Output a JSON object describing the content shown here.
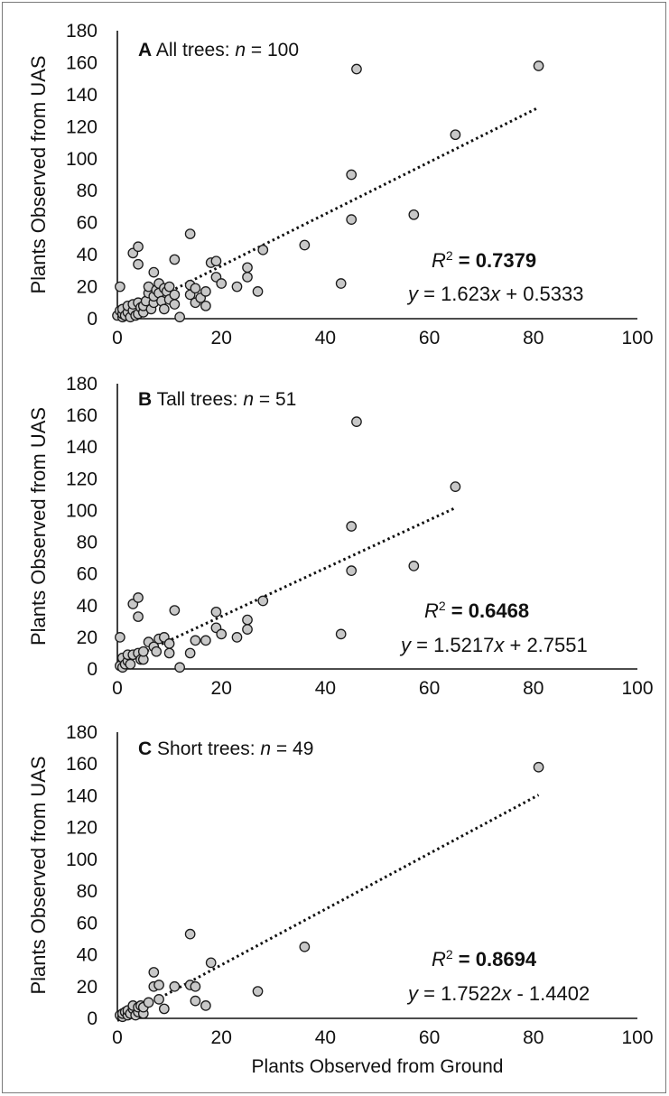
{
  "chart_data": [
    {
      "type": "scatter",
      "panel_letter": "A",
      "title": "All trees:",
      "n_label": "n",
      "n_value": "= 100",
      "ylabel": "Plants Observed from UAS",
      "xlabel": "",
      "xlim": [
        0,
        100
      ],
      "ylim": [
        0,
        180
      ],
      "x_ticks": [
        "0",
        "20",
        "40",
        "60",
        "80",
        "100"
      ],
      "y_ticks": [
        "0",
        "20",
        "40",
        "60",
        "80",
        "100",
        "120",
        "140",
        "160",
        "180"
      ],
      "r2_label": "R",
      "r2_sup": "2",
      "r2_value": "= 0.7379",
      "equation": "y = 1.623x + 0.5333",
      "trendline": {
        "slope": 1.623,
        "intercept": 0.5333,
        "x_range": [
          0,
          81
        ]
      },
      "points": [
        [
          0,
          2
        ],
        [
          0.5,
          20
        ],
        [
          0.5,
          5
        ],
        [
          1,
          1
        ],
        [
          1,
          3
        ],
        [
          1,
          6
        ],
        [
          1.5,
          2
        ],
        [
          2,
          4
        ],
        [
          2,
          8
        ],
        [
          2.5,
          1
        ],
        [
          3,
          5
        ],
        [
          3,
          9
        ],
        [
          3,
          41
        ],
        [
          3.5,
          2
        ],
        [
          4,
          3
        ],
        [
          4,
          10
        ],
        [
          4,
          34
        ],
        [
          4,
          45
        ],
        [
          4.5,
          7
        ],
        [
          5,
          4
        ],
        [
          5,
          8
        ],
        [
          5.5,
          11
        ],
        [
          6,
          16
        ],
        [
          6,
          20
        ],
        [
          6.5,
          6
        ],
        [
          7,
          10
        ],
        [
          7,
          14
        ],
        [
          7,
          29
        ],
        [
          7.5,
          18
        ],
        [
          8,
          16
        ],
        [
          8,
          22
        ],
        [
          8.5,
          11
        ],
        [
          9,
          6
        ],
        [
          9,
          19
        ],
        [
          9.5,
          17
        ],
        [
          10,
          12
        ],
        [
          10,
          20
        ],
        [
          11,
          37
        ],
        [
          11,
          15
        ],
        [
          11,
          9
        ],
        [
          12,
          1
        ],
        [
          14,
          53
        ],
        [
          14,
          21
        ],
        [
          14,
          15
        ],
        [
          15,
          10
        ],
        [
          15,
          19
        ],
        [
          16,
          13
        ],
        [
          17,
          8
        ],
        [
          17,
          17
        ],
        [
          18,
          35
        ],
        [
          19,
          36
        ],
        [
          19,
          26
        ],
        [
          20,
          22
        ],
        [
          23,
          20
        ],
        [
          25,
          32
        ],
        [
          25,
          26
        ],
        [
          27,
          17
        ],
        [
          28,
          43
        ],
        [
          36,
          46
        ],
        [
          43,
          22
        ],
        [
          45,
          90
        ],
        [
          45,
          62
        ],
        [
          46,
          156
        ],
        [
          57,
          65
        ],
        [
          65,
          115
        ],
        [
          81,
          158
        ]
      ]
    },
    {
      "type": "scatter",
      "panel_letter": "B",
      "title": "Tall trees:",
      "n_label": "n",
      "n_value": "= 51",
      "ylabel": "Plants Observed from UAS",
      "xlabel": "",
      "xlim": [
        0,
        100
      ],
      "ylim": [
        0,
        180
      ],
      "x_ticks": [
        "0",
        "20",
        "40",
        "60",
        "80",
        "100"
      ],
      "y_ticks": [
        "0",
        "20",
        "40",
        "60",
        "80",
        "100",
        "120",
        "140",
        "160",
        "180"
      ],
      "r2_label": "R",
      "r2_sup": "2",
      "r2_value": "= 0.6468",
      "equation": "y  = 1.5217x + 2.7551",
      "trendline": {
        "slope": 1.5217,
        "intercept": 2.7551,
        "x_range": [
          0,
          65
        ]
      },
      "points": [
        [
          0.5,
          20
        ],
        [
          0.5,
          2
        ],
        [
          1,
          1
        ],
        [
          1,
          7
        ],
        [
          1.5,
          3
        ],
        [
          2,
          5
        ],
        [
          2,
          9
        ],
        [
          2.5,
          3
        ],
        [
          3,
          41
        ],
        [
          3,
          9
        ],
        [
          4,
          33
        ],
        [
          4,
          45
        ],
        [
          4,
          10
        ],
        [
          4.5,
          6
        ],
        [
          5,
          6
        ],
        [
          5,
          11
        ],
        [
          6,
          17
        ],
        [
          7,
          14
        ],
        [
          7.5,
          11
        ],
        [
          8,
          19
        ],
        [
          9,
          20
        ],
        [
          10,
          10
        ],
        [
          10,
          16
        ],
        [
          11,
          37
        ],
        [
          12,
          1
        ],
        [
          14,
          10
        ],
        [
          15,
          18
        ],
        [
          17,
          18
        ],
        [
          19,
          36
        ],
        [
          19,
          26
        ],
        [
          20,
          22
        ],
        [
          23,
          20
        ],
        [
          25,
          31
        ],
        [
          25,
          25
        ],
        [
          28,
          43
        ],
        [
          43,
          22
        ],
        [
          45,
          90
        ],
        [
          45,
          62
        ],
        [
          46,
          156
        ],
        [
          57,
          65
        ],
        [
          65,
          115
        ]
      ]
    },
    {
      "type": "scatter",
      "panel_letter": "C",
      "title": "Short trees:",
      "n_label": "n",
      "n_value": "= 49",
      "ylabel": "Plants Observed from UAS",
      "xlabel": "Plants Observed from Ground",
      "xlim": [
        0,
        100
      ],
      "ylim": [
        0,
        180
      ],
      "x_ticks": [
        "0",
        "20",
        "40",
        "60",
        "80",
        "100"
      ],
      "y_ticks": [
        "0",
        "20",
        "40",
        "60",
        "80",
        "100",
        "120",
        "140",
        "160",
        "180"
      ],
      "r2_label": "R",
      "r2_sup": "2",
      "r2_value": "= 0.8694",
      "equation": "y = 1.7522x - 1.4402",
      "trendline": {
        "slope": 1.7522,
        "intercept": -1.4402,
        "x_range": [
          0,
          81
        ]
      },
      "points": [
        [
          0.5,
          2
        ],
        [
          1,
          1
        ],
        [
          1,
          3
        ],
        [
          1.5,
          4
        ],
        [
          2,
          2
        ],
        [
          2,
          5
        ],
        [
          2.5,
          3
        ],
        [
          3,
          6
        ],
        [
          3,
          8
        ],
        [
          3.5,
          2
        ],
        [
          4,
          4
        ],
        [
          4,
          7
        ],
        [
          4.5,
          8
        ],
        [
          5,
          3
        ],
        [
          5,
          7
        ],
        [
          6,
          10
        ],
        [
          7,
          29
        ],
        [
          7,
          20
        ],
        [
          8,
          21
        ],
        [
          8,
          12
        ],
        [
          9,
          6
        ],
        [
          11,
          20
        ],
        [
          14,
          53
        ],
        [
          14,
          21
        ],
        [
          15,
          20
        ],
        [
          15,
          11
        ],
        [
          17,
          8
        ],
        [
          18,
          35
        ],
        [
          27,
          17
        ],
        [
          36,
          45
        ],
        [
          81,
          158
        ]
      ]
    }
  ]
}
